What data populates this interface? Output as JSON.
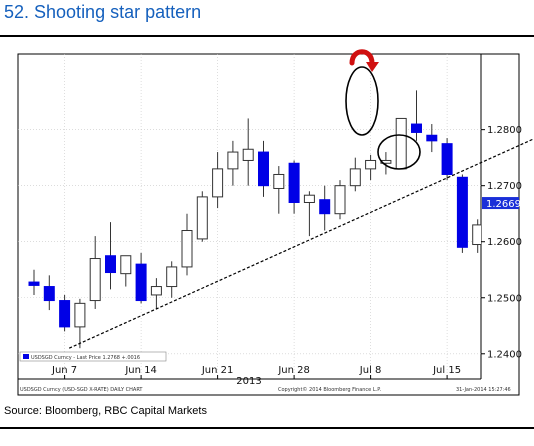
{
  "title": "52. Shooting star pattern",
  "source": "Source: Bloomberg, RBC Capital Markets",
  "chart_data": {
    "type": "candlestick",
    "instrument": "USDSGD Curncy (USD-SGD X-RATE) DAILY CHART",
    "legend_label": "USDSGD Curncy - Last Price 1.2768 +.0016",
    "footer_left": "USDSGD Curncy (USD-SGD X-RATE) DAILY CHART",
    "footer_mid": "Copyright© 2014 Bloomberg Finance L.P.",
    "footer_right": "31-Jan-2014 15:27:46",
    "year_label": "2013",
    "last_price_label": "1.2669",
    "last_price": 1.2669,
    "ylim": [
      1.2355,
      1.2935
    ],
    "y_ticks": [
      {
        "value": 1.24,
        "label": "1.2400"
      },
      {
        "value": 1.25,
        "label": "1.2500"
      },
      {
        "value": 1.26,
        "label": "1.2600"
      },
      {
        "value": 1.27,
        "label": "1.2700"
      },
      {
        "value": 1.28,
        "label": "1.2800"
      }
    ],
    "x_ticks": [
      {
        "index": 2,
        "label": "Jun 7"
      },
      {
        "index": 7,
        "label": "Jun 14"
      },
      {
        "index": 12,
        "label": "Jun 21"
      },
      {
        "index": 17,
        "label": "Jun 28"
      },
      {
        "index": 22,
        "label": "Jul 8"
      },
      {
        "index": 27,
        "label": "Jul 15"
      }
    ],
    "bullish_color": "#ffffff",
    "bearish_color": "#0000e6",
    "candles": [
      {
        "o": 1.2528,
        "h": 1.255,
        "l": 1.2505,
        "c": 1.2522
      },
      {
        "o": 1.252,
        "h": 1.254,
        "l": 1.2478,
        "c": 1.2495
      },
      {
        "o": 1.2495,
        "h": 1.2505,
        "l": 1.244,
        "c": 1.2448
      },
      {
        "o": 1.2448,
        "h": 1.2498,
        "l": 1.241,
        "c": 1.249
      },
      {
        "o": 1.2495,
        "h": 1.261,
        "l": 1.248,
        "c": 1.257
      },
      {
        "o": 1.2575,
        "h": 1.2635,
        "l": 1.2515,
        "c": 1.2545
      },
      {
        "o": 1.2543,
        "h": 1.257,
        "l": 1.252,
        "c": 1.2575
      },
      {
        "o": 1.256,
        "h": 1.258,
        "l": 1.249,
        "c": 1.2495
      },
      {
        "o": 1.2505,
        "h": 1.2535,
        "l": 1.248,
        "c": 1.252
      },
      {
        "o": 1.252,
        "h": 1.2565,
        "l": 1.25,
        "c": 1.2555
      },
      {
        "o": 1.2555,
        "h": 1.265,
        "l": 1.254,
        "c": 1.262
      },
      {
        "o": 1.2605,
        "h": 1.269,
        "l": 1.26,
        "c": 1.268
      },
      {
        "o": 1.268,
        "h": 1.276,
        "l": 1.266,
        "c": 1.273
      },
      {
        "o": 1.273,
        "h": 1.278,
        "l": 1.27,
        "c": 1.276
      },
      {
        "o": 1.2745,
        "h": 1.282,
        "l": 1.27,
        "c": 1.2765
      },
      {
        "o": 1.276,
        "h": 1.278,
        "l": 1.268,
        "c": 1.27
      },
      {
        "o": 1.2695,
        "h": 1.2735,
        "l": 1.265,
        "c": 1.272
      },
      {
        "o": 1.274,
        "h": 1.2745,
        "l": 1.265,
        "c": 1.267
      },
      {
        "o": 1.267,
        "h": 1.269,
        "l": 1.261,
        "c": 1.2683
      },
      {
        "o": 1.2675,
        "h": 1.27,
        "l": 1.262,
        "c": 1.265
      },
      {
        "o": 1.265,
        "h": 1.271,
        "l": 1.264,
        "c": 1.27
      },
      {
        "o": 1.27,
        "h": 1.275,
        "l": 1.269,
        "c": 1.273
      },
      {
        "o": 1.273,
        "h": 1.2755,
        "l": 1.271,
        "c": 1.2745
      },
      {
        "o": 1.274,
        "h": 1.276,
        "l": 1.272,
        "c": 1.2745
      },
      {
        "o": 1.273,
        "h": 1.282,
        "l": 1.273,
        "c": 1.282
      },
      {
        "o": 1.281,
        "h": 1.287,
        "l": 1.278,
        "c": 1.2795
      },
      {
        "o": 1.279,
        "h": 1.281,
        "l": 1.276,
        "c": 1.278
      },
      {
        "o": 1.2775,
        "h": 1.2785,
        "l": 1.271,
        "c": 1.272
      },
      {
        "o": 1.2715,
        "h": 1.272,
        "l": 1.258,
        "c": 1.259
      },
      {
        "o": 1.2595,
        "h": 1.264,
        "l": 1.258,
        "c": 1.263
      },
      {
        "o": 1.263,
        "h": 1.265,
        "l": 1.26,
        "c": 1.2625
      },
      {
        "o": 1.2625,
        "h": 1.264,
        "l": 1.258,
        "c": 1.2595
      },
      {
        "o": 1.2595,
        "h": 1.263,
        "l": 1.257,
        "c": 1.261
      },
      {
        "o": 1.261,
        "h": 1.2675,
        "l": 1.259,
        "c": 1.2669
      }
    ],
    "trendline": [
      {
        "index": 2.3,
        "value": 1.241
      },
      {
        "index": 34.0,
        "value": 1.28
      }
    ]
  }
}
